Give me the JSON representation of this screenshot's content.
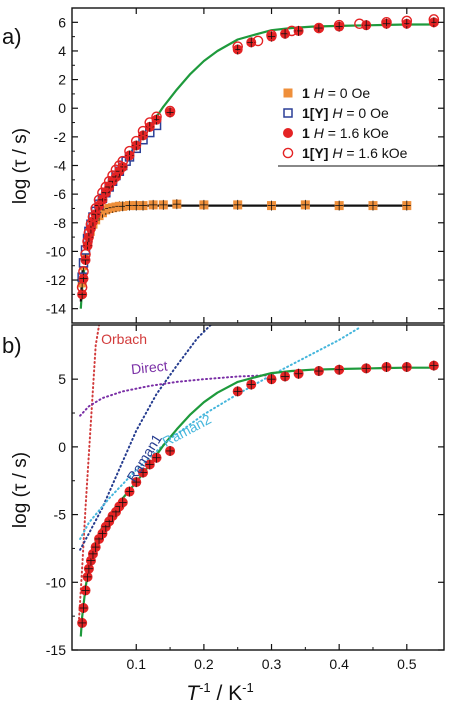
{
  "colors": {
    "orange": "#ef8f3a",
    "blue": "#2b3f97",
    "red": "#e42324",
    "green": "#1e9a3c",
    "black": "#111111",
    "orbach": "#d23b3b",
    "raman1": "#253c8f",
    "raman2": "#45b6dc",
    "direct": "#7a2fa6"
  },
  "shared": {
    "xlabel_main": "T",
    "xlabel_sup1": "-1",
    "xlabel_unit": " / K",
    "xlabel_sup2": "-1",
    "ylabel": "log (τ / s)"
  },
  "chart_data": [
    {
      "type": "scatter",
      "panel_label": "a)",
      "xlim": [
        0.005,
        0.555
      ],
      "ylim": [
        -15,
        7
      ],
      "xticks": [
        0.1,
        0.2,
        0.3,
        0.4,
        0.5
      ],
      "yticks": [
        6,
        4,
        2,
        0,
        -2,
        -4,
        -6,
        -8,
        -10,
        -12,
        -14
      ],
      "ytick_labels": [
        "6",
        "4",
        "2",
        "0",
        "-2",
        "-4",
        "-6",
        "-8",
        "-10",
        "-12",
        "-14"
      ],
      "xtick_labels_shown": false,
      "legend": {
        "placement": "right",
        "entries": [
          {
            "id": "1",
            "bold": "1",
            "text": " H = 0 Oe",
            "marker": "square-filled",
            "color": "orange"
          },
          {
            "id": "1Y",
            "bold": "1[Y]",
            "text": " H = 0 Oe",
            "marker": "square-open",
            "color": "blue"
          },
          {
            "id": "1H",
            "bold": "1",
            "text": " H = 1.6 kOe",
            "marker": "circle-filled",
            "color": "red"
          },
          {
            "id": "1YH",
            "bold": "1[Y]",
            "text": " H = 1.6 kOe",
            "marker": "circle-open",
            "color": "red"
          }
        ]
      },
      "series": [
        {
          "id": "1",
          "marker": "square-filled",
          "color": "orange",
          "x": [
            0.02,
            0.022,
            0.025,
            0.028,
            0.032,
            0.036,
            0.04,
            0.045,
            0.05,
            0.055,
            0.06,
            0.065,
            0.07,
            0.075,
            0.08,
            0.09,
            0.1,
            0.11,
            0.125,
            0.14,
            0.16,
            0.2,
            0.25,
            0.3,
            0.35,
            0.4,
            0.45,
            0.5
          ],
          "y": [
            -12.2,
            -11.0,
            -10.0,
            -9.2,
            -8.6,
            -8.1,
            -7.8,
            -7.5,
            -7.3,
            -7.1,
            -7.0,
            -6.95,
            -6.9,
            -6.85,
            -6.85,
            -6.8,
            -6.8,
            -6.8,
            -6.75,
            -6.75,
            -6.7,
            -6.75,
            -6.75,
            -6.8,
            -6.75,
            -6.8,
            -6.8,
            -6.8
          ]
        },
        {
          "id": "1Y",
          "marker": "square-open",
          "color": "blue",
          "x": [
            0.02,
            0.022,
            0.025,
            0.028,
            0.03,
            0.033,
            0.036,
            0.04,
            0.045,
            0.05,
            0.055,
            0.06,
            0.065,
            0.07,
            0.075,
            0.08,
            0.085,
            0.09,
            0.1,
            0.11,
            0.12,
            0.13
          ],
          "y": [
            -11.8,
            -10.8,
            -9.9,
            -9.1,
            -8.6,
            -8.1,
            -7.6,
            -7.2,
            -6.7,
            -6.3,
            -5.9,
            -5.5,
            -5.1,
            -4.7,
            -4.4,
            -4.0,
            -3.7,
            -3.4,
            -2.8,
            -2.2,
            -1.7,
            -1.2
          ]
        },
        {
          "id": "1H",
          "marker": "circle-filled",
          "color": "red",
          "x": [
            0.02,
            0.022,
            0.025,
            0.028,
            0.03,
            0.033,
            0.036,
            0.04,
            0.045,
            0.05,
            0.055,
            0.06,
            0.065,
            0.07,
            0.075,
            0.08,
            0.09,
            0.1,
            0.11,
            0.12,
            0.13,
            0.15,
            0.25,
            0.27,
            0.3,
            0.32,
            0.34,
            0.37,
            0.4,
            0.44,
            0.47,
            0.5,
            0.54
          ],
          "y": [
            -13.0,
            -11.9,
            -10.6,
            -9.6,
            -9.0,
            -8.4,
            -7.9,
            -7.4,
            -6.8,
            -6.4,
            -5.9,
            -5.5,
            -5.1,
            -4.8,
            -4.4,
            -4.1,
            -3.3,
            -2.6,
            -1.9,
            -1.3,
            -0.8,
            -0.3,
            4.1,
            4.6,
            5.0,
            5.2,
            5.4,
            5.6,
            5.7,
            5.8,
            5.9,
            5.9,
            6.0
          ]
        },
        {
          "id": "1YH",
          "marker": "circle-open",
          "color": "red",
          "x": [
            0.02,
            0.022,
            0.025,
            0.028,
            0.03,
            0.033,
            0.036,
            0.04,
            0.045,
            0.05,
            0.055,
            0.06,
            0.065,
            0.07,
            0.075,
            0.08,
            0.09,
            0.1,
            0.11,
            0.12,
            0.13,
            0.15,
            0.25,
            0.28,
            0.3,
            0.33,
            0.37,
            0.4,
            0.43,
            0.47,
            0.5,
            0.54
          ],
          "y": [
            -12.5,
            -11.4,
            -10.2,
            -9.3,
            -8.7,
            -8.1,
            -7.6,
            -7.0,
            -6.4,
            -5.9,
            -5.5,
            -5.1,
            -4.7,
            -4.3,
            -4.0,
            -3.7,
            -3.0,
            -2.3,
            -1.6,
            -1.0,
            -0.6,
            -0.2,
            4.3,
            4.7,
            5.1,
            5.4,
            5.6,
            5.8,
            5.9,
            6.0,
            6.1,
            6.2
          ]
        }
      ],
      "fits": [
        {
          "id": "fit-h-field",
          "color": "green",
          "x": [
            0.018,
            0.02,
            0.025,
            0.03,
            0.04,
            0.05,
            0.06,
            0.07,
            0.08,
            0.1,
            0.12,
            0.14,
            0.16,
            0.18,
            0.2,
            0.22,
            0.25,
            0.28,
            0.3,
            0.33,
            0.36,
            0.4,
            0.45,
            0.5,
            0.54
          ],
          "y": [
            -14.0,
            -12.6,
            -10.4,
            -8.9,
            -7.0,
            -5.9,
            -5.1,
            -4.4,
            -3.8,
            -2.6,
            -1.3,
            0.1,
            1.3,
            2.4,
            3.3,
            4.0,
            4.8,
            5.2,
            5.45,
            5.6,
            5.7,
            5.75,
            5.8,
            5.85,
            5.85
          ]
        },
        {
          "id": "fit-zero-field",
          "color": "black",
          "x": [
            0.018,
            0.02,
            0.022,
            0.025,
            0.028,
            0.032,
            0.036,
            0.04,
            0.05,
            0.06,
            0.08,
            0.1,
            0.15,
            0.2,
            0.3,
            0.4,
            0.5
          ],
          "y": [
            -13.5,
            -11.8,
            -10.6,
            -9.5,
            -8.8,
            -8.2,
            -7.8,
            -7.5,
            -7.1,
            -6.95,
            -6.85,
            -6.8,
            -6.8,
            -6.8,
            -6.8,
            -6.8,
            -6.8
          ]
        }
      ]
    },
    {
      "type": "scatter",
      "panel_label": "b)",
      "xlim": [
        0.005,
        0.555
      ],
      "ylim": [
        -15,
        9
      ],
      "xticks": [
        0.1,
        0.2,
        0.3,
        0.4,
        0.5
      ],
      "xtick_labels": [
        "0.1",
        "0.2",
        "0.3",
        "0.4",
        "0.5"
      ],
      "yticks": [
        5,
        0,
        -5,
        -10,
        -15
      ],
      "ytick_labels": [
        "5",
        "0",
        "-5",
        "-10",
        "-15"
      ],
      "series": [
        {
          "id": "1H",
          "marker": "circle-filled",
          "color": "red",
          "x": [
            0.02,
            0.022,
            0.025,
            0.028,
            0.03,
            0.033,
            0.036,
            0.04,
            0.045,
            0.05,
            0.055,
            0.06,
            0.065,
            0.07,
            0.075,
            0.08,
            0.09,
            0.1,
            0.11,
            0.12,
            0.13,
            0.15,
            0.25,
            0.27,
            0.3,
            0.32,
            0.34,
            0.37,
            0.4,
            0.44,
            0.47,
            0.5,
            0.54
          ],
          "y": [
            -13.0,
            -11.9,
            -10.6,
            -9.6,
            -9.0,
            -8.4,
            -7.9,
            -7.4,
            -6.8,
            -6.4,
            -5.9,
            -5.5,
            -5.1,
            -4.8,
            -4.4,
            -4.1,
            -3.3,
            -2.6,
            -1.9,
            -1.3,
            -0.8,
            -0.3,
            4.1,
            4.6,
            5.0,
            5.2,
            5.4,
            5.6,
            5.7,
            5.8,
            5.9,
            5.9,
            6.0
          ]
        }
      ],
      "fits": [
        {
          "id": "fit-total",
          "color": "green",
          "x": [
            0.018,
            0.02,
            0.025,
            0.03,
            0.04,
            0.05,
            0.06,
            0.07,
            0.08,
            0.1,
            0.12,
            0.14,
            0.16,
            0.18,
            0.2,
            0.22,
            0.25,
            0.28,
            0.3,
            0.33,
            0.36,
            0.4,
            0.45,
            0.5,
            0.54
          ],
          "y": [
            -14.0,
            -12.6,
            -10.4,
            -8.9,
            -7.0,
            -5.9,
            -5.1,
            -4.4,
            -3.8,
            -2.6,
            -1.3,
            0.1,
            1.3,
            2.4,
            3.3,
            4.0,
            4.8,
            5.2,
            5.45,
            5.6,
            5.7,
            5.75,
            5.8,
            5.85,
            5.85
          ]
        }
      ],
      "components": [
        {
          "id": "orbach",
          "name": "Orbach",
          "color": "orbach",
          "x": [
            0.015,
            0.02,
            0.025,
            0.03,
            0.035,
            0.04,
            0.045
          ],
          "y": [
            -13.0,
            -9.0,
            -4.5,
            -0.5,
            3.5,
            7.5,
            9.0
          ]
        },
        {
          "id": "raman1",
          "name": "Raman1",
          "color": "raman1",
          "x": [
            0.017,
            0.03,
            0.05,
            0.07,
            0.1,
            0.13,
            0.16,
            0.19,
            0.21
          ],
          "y": [
            -7.6,
            -6.4,
            -4.5,
            -2.2,
            1.2,
            3.9,
            6.0,
            8.0,
            9.0
          ]
        },
        {
          "id": "raman2",
          "name": "Raman2",
          "color": "raman2",
          "x": [
            0.017,
            0.03,
            0.06,
            0.1,
            0.15,
            0.2,
            0.25,
            0.3,
            0.35,
            0.4,
            0.43
          ],
          "y": [
            -6.8,
            -5.6,
            -3.8,
            -1.7,
            0.6,
            2.4,
            3.9,
            5.3,
            6.6,
            7.9,
            8.8
          ]
        },
        {
          "id": "direct",
          "name": "Direct",
          "color": "direct",
          "x": [
            0.017,
            0.03,
            0.05,
            0.08,
            0.12,
            0.16,
            0.2,
            0.25,
            0.3
          ],
          "y": [
            2.3,
            3.0,
            3.6,
            4.1,
            4.5,
            4.8,
            5.0,
            5.2,
            5.3
          ]
        }
      ]
    }
  ]
}
